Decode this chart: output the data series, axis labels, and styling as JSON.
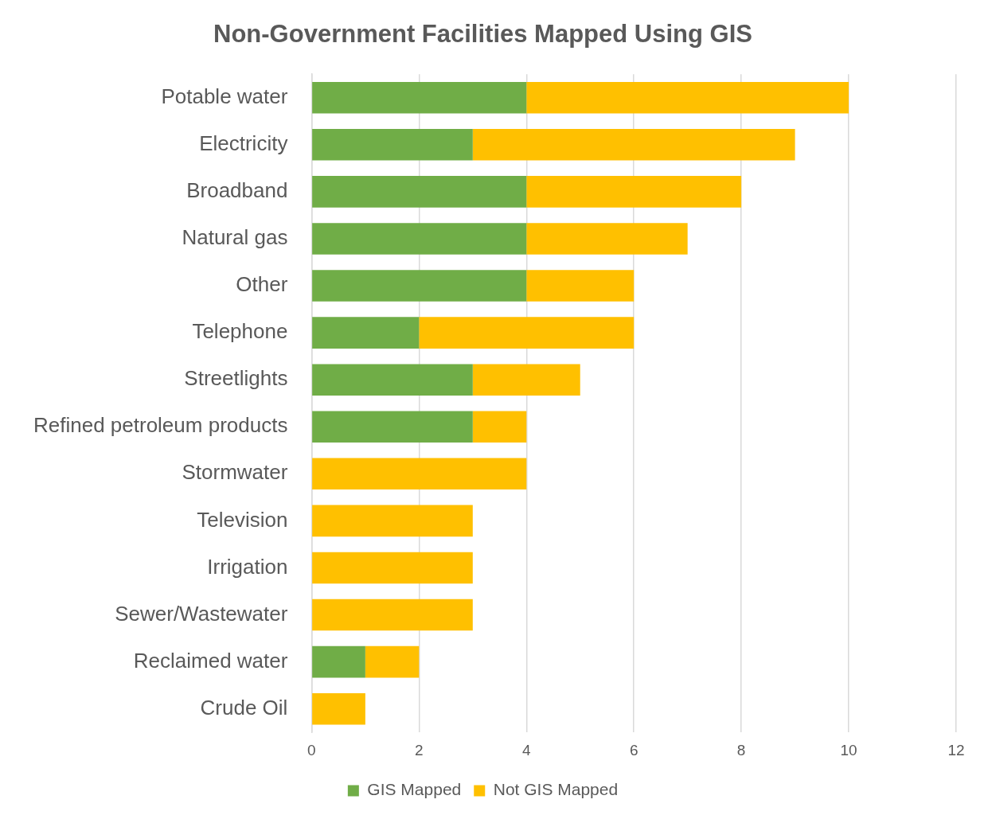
{
  "chart_data": {
    "type": "bar",
    "title": "Non-Government Facilities Mapped Using GIS",
    "orientation": "horizontal",
    "stacked": true,
    "categories": [
      "Potable water",
      "Electricity",
      "Broadband",
      "Natural gas",
      "Other",
      "Telephone",
      "Streetlights",
      "Refined petroleum products",
      "Stormwater",
      "Television",
      "Irrigation",
      "Sewer/Wastewater",
      "Reclaimed water",
      "Crude Oil"
    ],
    "series": [
      {
        "name": "GIS Mapped",
        "color": "#70ad47",
        "values": [
          4,
          3,
          4,
          4,
          4,
          2,
          3,
          3,
          0,
          0,
          0,
          0,
          1,
          0
        ]
      },
      {
        "name": "Not GIS Mapped",
        "color": "#ffc000",
        "values": [
          6,
          6,
          4,
          3,
          2,
          4,
          2,
          1,
          4,
          3,
          3,
          3,
          1,
          1
        ]
      }
    ],
    "xlim": [
      0,
      12
    ],
    "xticks": [
      0,
      2,
      4,
      6,
      8,
      10,
      12
    ],
    "grid": "x",
    "legend": "bottom"
  }
}
